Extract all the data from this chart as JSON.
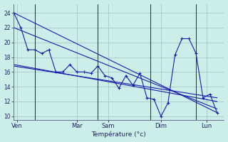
{
  "background_color": "#cceee8",
  "grid_color": "#aacccc",
  "line_color": "#1a1aaa",
  "xlabel": "Température (°c)",
  "ylim": [
    9.5,
    25.2
  ],
  "yticks": [
    10,
    12,
    14,
    16,
    18,
    20,
    22,
    24
  ],
  "xlim": [
    0,
    30
  ],
  "day_labels": [
    "Ven",
    "Mar",
    "Sam",
    "Dim",
    "Lun"
  ],
  "day_x": [
    0.5,
    9,
    13.5,
    21,
    27.5
  ],
  "vline_x": [
    3,
    12,
    19.5,
    26
  ],
  "series_main": {
    "x": [
      0,
      1,
      2,
      3,
      4,
      5,
      6,
      7,
      8,
      9,
      10,
      11,
      12,
      13,
      14,
      15,
      16,
      17,
      18,
      19,
      20,
      21,
      22,
      23,
      24,
      25,
      26,
      27,
      28,
      29
    ],
    "y": [
      24,
      22,
      19,
      19,
      18.5,
      19,
      16,
      16,
      17,
      16,
      16,
      15.8,
      16.8,
      15.5,
      15.2,
      13.8,
      15.5,
      14.2,
      15.8,
      12.5,
      12.3,
      10,
      11.8,
      18.3,
      20.5,
      20.5,
      18.5,
      12.5,
      13,
      10.5
    ]
  },
  "trend1": {
    "x": [
      0,
      29
    ],
    "y": [
      24,
      10.5
    ]
  },
  "trend2": {
    "x": [
      0,
      29
    ],
    "y": [
      22,
      11.0
    ]
  },
  "trend3": {
    "x": [
      0,
      29
    ],
    "y": [
      17,
      12.0
    ]
  },
  "trend4": {
    "x": [
      0,
      29
    ],
    "y": [
      16.8,
      12.5
    ]
  }
}
